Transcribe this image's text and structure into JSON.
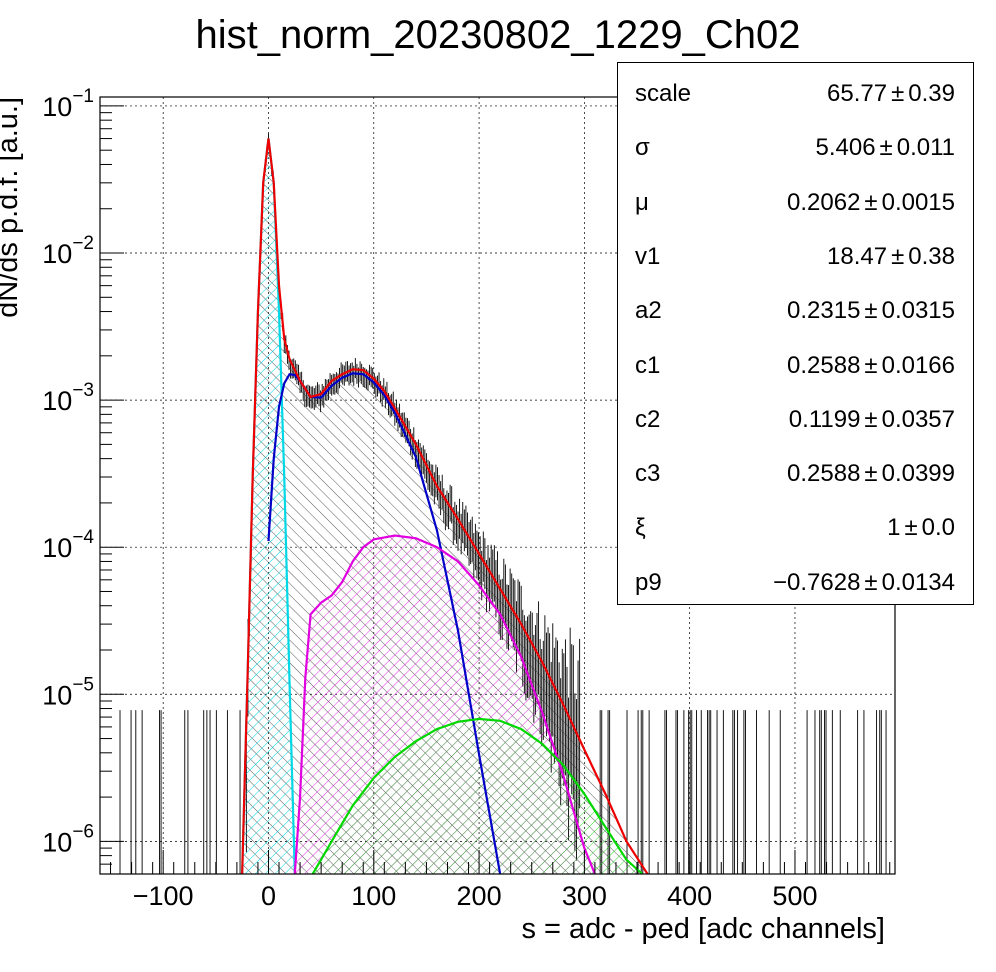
{
  "chart_data": {
    "type": "histogram",
    "title": "hist_norm_20230802_1229_Ch02",
    "xlabel": "s = adc - ped [adc channels]",
    "ylabel": "dN/ds p.d.f. [a.u.]",
    "y_scale": "log",
    "xlim": [
      -160,
      595
    ],
    "ylim": [
      6e-07,
      0.115
    ],
    "grid": true,
    "x_ticks": [
      "−100",
      "0",
      "100",
      "200",
      "300",
      "400",
      "500"
    ],
    "x_tick_values": [
      -100,
      0,
      100,
      200,
      300,
      400,
      500
    ],
    "y_ticks": [
      {
        "base": "10",
        "exp": "−6",
        "value": 1e-06
      },
      {
        "base": "10",
        "exp": "−5",
        "value": 1e-05
      },
      {
        "base": "10",
        "exp": "−4",
        "value": 0.0001
      },
      {
        "base": "10",
        "exp": "−3",
        "value": 0.001
      },
      {
        "base": "10",
        "exp": "−2",
        "value": 0.01
      },
      {
        "base": "10",
        "exp": "−1",
        "value": 0.1
      }
    ],
    "colors": {
      "data": "#000000",
      "total_fit": "#ee0000",
      "pedestal": "#00d8e6",
      "one_pe": "#0000c8",
      "two_pe": "#e000e0",
      "three_pe": "#00d800",
      "hatch_total": "#303030"
    },
    "envelope": {
      "x": [
        -25,
        -20,
        -15,
        -10,
        -5,
        0,
        5,
        10,
        15,
        20,
        25,
        30,
        40,
        50,
        60,
        70,
        80,
        90,
        100,
        110,
        120,
        140,
        160,
        180,
        200,
        220,
        240,
        260,
        280,
        300,
        320,
        340,
        360
      ],
      "y": [
        6e-07,
        1.2e-05,
        0.0003,
        0.004,
        0.03,
        0.06,
        0.03,
        0.006,
        0.0026,
        0.0019,
        0.0016,
        0.00135,
        0.00105,
        0.0011,
        0.00135,
        0.0015,
        0.00162,
        0.0016,
        0.0014,
        0.00115,
        0.00088,
        0.0005,
        0.00026,
        0.000155,
        9e-05,
        5.2e-05,
        3e-05,
        1.65e-05,
        8.5e-06,
        4.2e-06,
        2.1e-06,
        1e-06,
        6e-07
      ]
    },
    "series": [
      {
        "x": [
          -25,
          -20,
          -15,
          -10,
          -5,
          0,
          5,
          10,
          15,
          20,
          25
        ],
        "y": [
          6e-07,
          1.2e-05,
          0.0003,
          0.004,
          0.03,
          0.06,
          0.03,
          0.004,
          0.0003,
          1.2e-05,
          6e-07
        ]
      },
      {
        "x": [
          0,
          5,
          10,
          15,
          20,
          25,
          30,
          40,
          50,
          60,
          70,
          80,
          90,
          100,
          110,
          120,
          140,
          160,
          180,
          200,
          220
        ],
        "y": [
          0.00011,
          0.0004,
          0.0009,
          0.0013,
          0.0015,
          0.00148,
          0.00135,
          0.00105,
          0.00104,
          0.00125,
          0.00142,
          0.00152,
          0.0015,
          0.00132,
          0.00108,
          0.00082,
          0.00041,
          0.00013,
          2.7e-05,
          3.9e-06,
          6e-07
        ]
      },
      {
        "x": [
          25,
          30,
          35,
          40,
          50,
          60,
          70,
          80,
          90,
          100,
          120,
          140,
          160,
          180,
          200,
          220,
          240,
          260,
          280,
          300,
          310
        ],
        "y": [
          6e-07,
          2e-06,
          1.3e-05,
          3.5e-05,
          4.2e-05,
          4.7e-05,
          5.8e-05,
          8e-05,
          0.0001,
          0.000113,
          0.00012,
          0.000115,
          0.0001,
          8e-05,
          5.5e-05,
          3.5e-05,
          1.8e-05,
          7.5e-06,
          2.8e-06,
          9e-07,
          6e-07
        ]
      },
      {
        "x": [
          42,
          60,
          80,
          100,
          120,
          140,
          160,
          180,
          200,
          220,
          240,
          260,
          280,
          300,
          320,
          340,
          355
        ],
        "y": [
          6e-07,
          1e-06,
          1.75e-06,
          2.7e-06,
          3.75e-06,
          4.8e-06,
          5.8e-06,
          6.5e-06,
          6.8e-06,
          6.6e-06,
          5.8e-06,
          4.6e-06,
          3.3e-06,
          2.1e-06,
          1.25e-06,
          7.5e-07,
          6e-07
        ]
      }
    ]
  },
  "stats": [
    {
      "name": "scale",
      "value": "65.77",
      "error": "0.39"
    },
    {
      "name": "σ",
      "value": "5.406",
      "error": "0.011"
    },
    {
      "name": "μ",
      "value": "0.2062",
      "error": "0.0015"
    },
    {
      "name": "v1",
      "value": "18.47",
      "error": "0.38"
    },
    {
      "name": "a2",
      "value": "0.2315",
      "error": "0.0315"
    },
    {
      "name": "c1",
      "value": "0.2588",
      "error": "0.0166"
    },
    {
      "name": "c2",
      "value": "0.1199",
      "error": "0.0357"
    },
    {
      "name": "c3",
      "value": "0.2588",
      "error": "0.0399"
    },
    {
      "name": "ξ",
      "value": "1",
      "error": "0.0"
    },
    {
      "name": "p9",
      "value": "−0.7628",
      "error": "0.0134"
    }
  ],
  "pm_symbol": "±"
}
